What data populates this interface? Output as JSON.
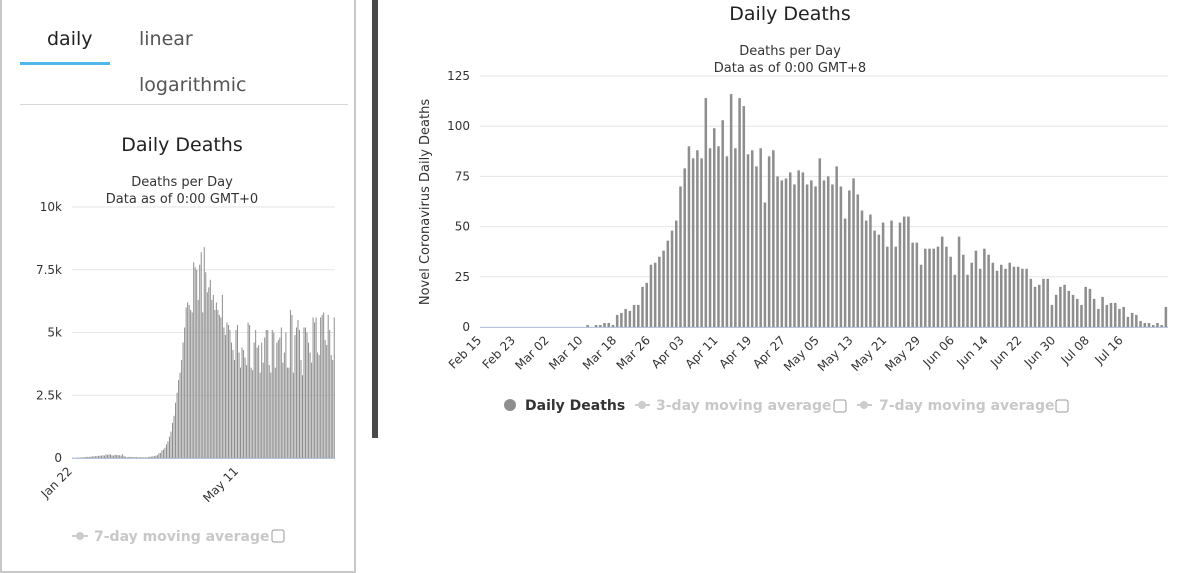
{
  "tabs": {
    "daily": "daily",
    "linear": "linear",
    "logarithmic": "logarithmic"
  },
  "chart_data": [
    {
      "type": "bar",
      "title": "Daily Deaths",
      "subtitle_line1": "Deaths per Day",
      "subtitle_line2": "Data as of 0:00 GMT+0",
      "ylim": [
        0,
        10000
      ],
      "yticks": [
        "0",
        "2.5k",
        "5k",
        "7.5k",
        "10k"
      ],
      "ytick_values": [
        0,
        2500,
        5000,
        7500,
        10000
      ],
      "xtick_labels": [
        "Jan 22",
        "May 11"
      ],
      "xtick_index": [
        0,
        110
      ],
      "grid": true,
      "legend": [
        {
          "label": "7-day moving average",
          "checked": false
        }
      ],
      "bar_color": "#8e8e8e",
      "values": [
        17,
        0,
        8,
        16,
        15,
        24,
        26,
        26,
        38,
        43,
        46,
        45,
        57,
        64,
        66,
        73,
        73,
        86,
        89,
        97,
        108,
        97,
        146,
        121,
        143,
        142,
        105,
        98,
        136,
        115,
        118,
        109,
        97,
        150,
        71,
        52,
        29,
        44,
        47,
        35,
        42,
        31,
        38,
        31,
        30,
        33,
        29,
        27,
        22,
        27,
        39,
        50,
        55,
        67,
        73,
        92,
        114,
        190,
        200,
        300,
        334,
        410,
        540,
        660,
        850,
        1050,
        1400,
        1680,
        2200,
        2600,
        3100,
        3400,
        3900,
        4600,
        5200,
        6000,
        6200,
        6100,
        5900,
        5800,
        7800,
        7600,
        7500,
        6300,
        7700,
        8200,
        5800,
        8400,
        7400,
        6600,
        6800,
        7100,
        6300,
        6500,
        5900,
        6200,
        5900,
        5700,
        5600,
        6500,
        5200,
        4900,
        5400,
        5300,
        5100,
        4600,
        4300,
        3900,
        5100,
        5300,
        4200,
        3600,
        4400,
        4300,
        4000,
        3700,
        5400,
        5300,
        3600,
        3500,
        4600,
        5100,
        4400,
        4500,
        3400,
        4600,
        3800,
        4800,
        5100,
        5100,
        3700,
        3400,
        5100,
        5000,
        3600,
        4600,
        4700,
        4800,
        5200,
        3800,
        4200,
        5000,
        3600,
        3600,
        5900,
        5700,
        3400,
        4900,
        5200,
        5500,
        5100,
        3900,
        3300,
        5200,
        5200,
        5000,
        4600,
        4200,
        3800,
        5600,
        5400,
        5600,
        4200,
        4100,
        5600,
        5700,
        5800,
        4700,
        4500,
        5700,
        5100,
        4100,
        3900,
        5600
      ]
    },
    {
      "type": "bar",
      "title": "Daily Deaths",
      "subtitle_line1": "Deaths per Day",
      "subtitle_line2": "Data as of 0:00 GMT+8",
      "ylabel": "Novel Coronavirus Daily Deaths",
      "ylim": [
        0,
        125
      ],
      "yticks": [
        "0",
        "25",
        "50",
        "75",
        "100",
        "125"
      ],
      "ytick_values": [
        0,
        25,
        50,
        75,
        100,
        125
      ],
      "xtick_labels": [
        "Feb 15",
        "Feb 23",
        "Mar 02",
        "Mar 10",
        "Mar 18",
        "Mar 26",
        "Apr 03",
        "Apr 11",
        "Apr 19",
        "Apr 27",
        "May 05",
        "May 13",
        "May 21",
        "May 29",
        "Jun 06",
        "Jun 14",
        "Jun 22",
        "Jun 30",
        "Jul 08",
        "Jul 16"
      ],
      "xtick_index": [
        0,
        8,
        16,
        24,
        32,
        40,
        48,
        56,
        64,
        72,
        80,
        88,
        96,
        104,
        112,
        120,
        128,
        136,
        144,
        152
      ],
      "grid": true,
      "legend": [
        {
          "label": "Daily Deaths",
          "active": true
        },
        {
          "label": "3-day moving average",
          "checked": false
        },
        {
          "label": "7-day moving average",
          "checked": false
        }
      ],
      "bar_color": "#8e8e8e",
      "values": [
        0,
        0,
        0,
        0,
        0,
        0,
        0,
        0,
        0,
        0,
        0,
        0,
        0,
        0,
        0,
        0,
        0,
        0,
        0,
        0,
        0,
        0,
        0,
        0,
        0,
        1,
        0,
        1,
        1,
        2,
        2,
        1,
        6,
        7,
        9,
        8,
        11,
        11,
        20,
        22,
        31,
        32,
        35,
        38,
        43,
        48,
        53,
        70,
        79,
        90,
        84,
        88,
        84,
        114,
        89,
        99,
        90,
        103,
        85,
        116,
        89,
        114,
        110,
        86,
        88,
        80,
        89,
        62,
        85,
        88,
        75,
        73,
        74,
        77,
        71,
        78,
        77,
        71,
        73,
        70,
        84,
        73,
        75,
        71,
        80,
        70,
        54,
        68,
        74,
        66,
        58,
        53,
        56,
        48,
        46,
        52,
        40,
        53,
        40,
        52,
        55,
        55,
        42,
        42,
        31,
        39,
        39,
        39,
        40,
        45,
        40,
        35,
        26,
        45,
        36,
        26,
        32,
        38,
        29,
        39,
        36,
        32,
        28,
        31,
        29,
        32,
        30,
        30,
        29,
        29,
        24,
        20,
        21,
        24,
        24,
        11,
        16,
        20,
        21,
        18,
        16,
        14,
        11,
        20,
        19,
        14,
        9,
        15,
        11,
        12,
        12,
        9,
        10,
        5,
        7,
        6,
        3,
        2,
        2,
        1,
        2,
        1,
        10
      ]
    }
  ]
}
